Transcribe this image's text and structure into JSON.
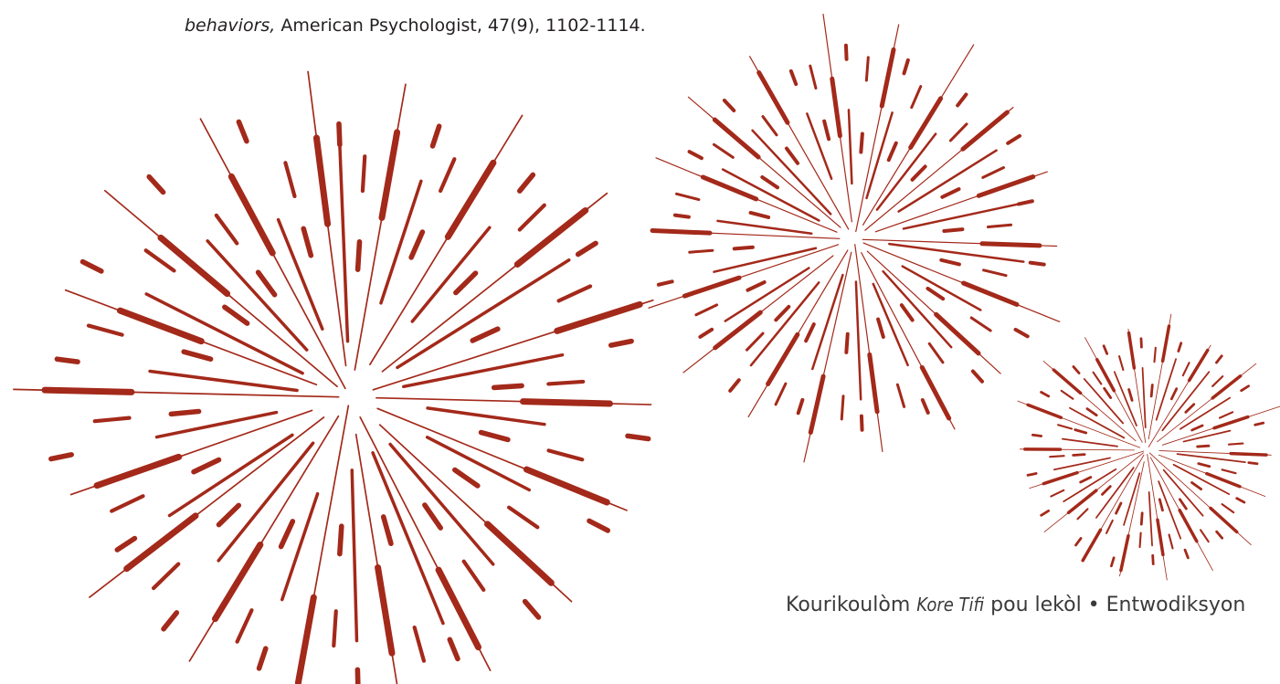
{
  "reference": {
    "title_italic": "behaviors,",
    "source": "American Psychologist, 47(9), 1102-1114."
  },
  "footer": {
    "lead": "Kourikoulòm",
    "program": "Kore Tifi",
    "rest": "pou lekòl • Entwodiksyon"
  }
}
